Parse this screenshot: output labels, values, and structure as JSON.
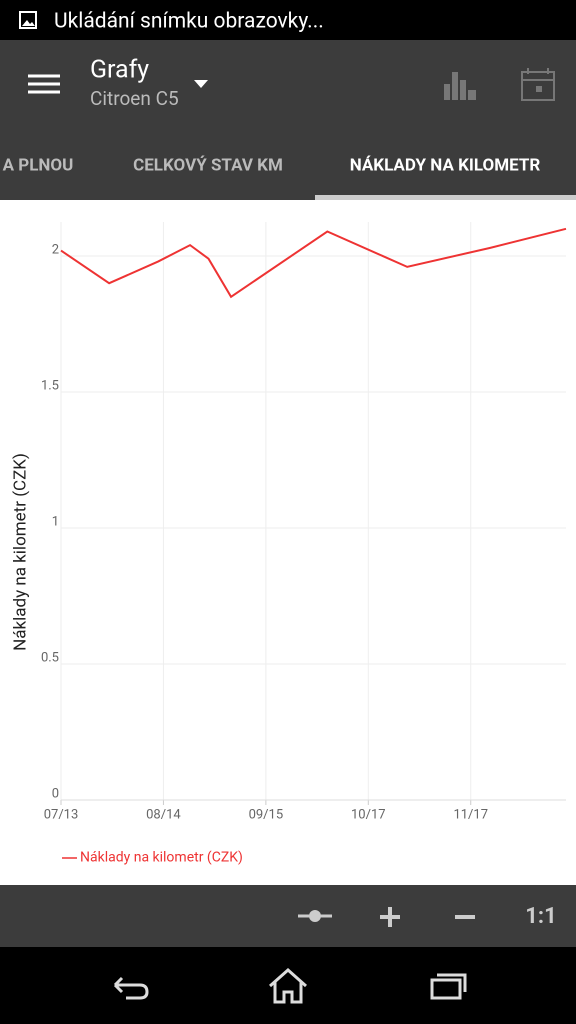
{
  "status_bar": {
    "text": "Ukládání snímku obrazovky..."
  },
  "app_bar": {
    "title": "Grafy",
    "subtitle": "Citroen C5"
  },
  "tabs": [
    "A PLNOU",
    "CELKOVÝ STAV KM",
    "NÁKLADY NA KILOMETR"
  ],
  "toolbar": {
    "zoom_reset": "1:1"
  },
  "chart_data": {
    "type": "line",
    "y_label": "Náklady na kilometr (CZK)",
    "x": [
      0,
      0.47,
      0.95,
      1.26,
      1.44,
      1.66,
      2.6,
      3.38,
      4.19,
      4.93
    ],
    "series": [
      {
        "name": "Náklady na kilometr (CZK)",
        "color": "#ee3333",
        "values": [
          2.02,
          1.9,
          1.98,
          2.04,
          1.99,
          1.85,
          2.09,
          1.96,
          2.03,
          2.1
        ]
      }
    ],
    "xlim": [
      0,
      4.93
    ],
    "xticks": [
      {
        "value": 0,
        "label": "07/13"
      },
      {
        "value": 1,
        "label": "08/14"
      },
      {
        "value": 2,
        "label": "09/15"
      },
      {
        "value": 3,
        "label": "10/17"
      },
      {
        "value": 4,
        "label": "11/17"
      }
    ],
    "ylim": [
      0,
      2.1
    ],
    "yticks": [
      0,
      0.5,
      1,
      1.5,
      2
    ],
    "grid": true
  }
}
